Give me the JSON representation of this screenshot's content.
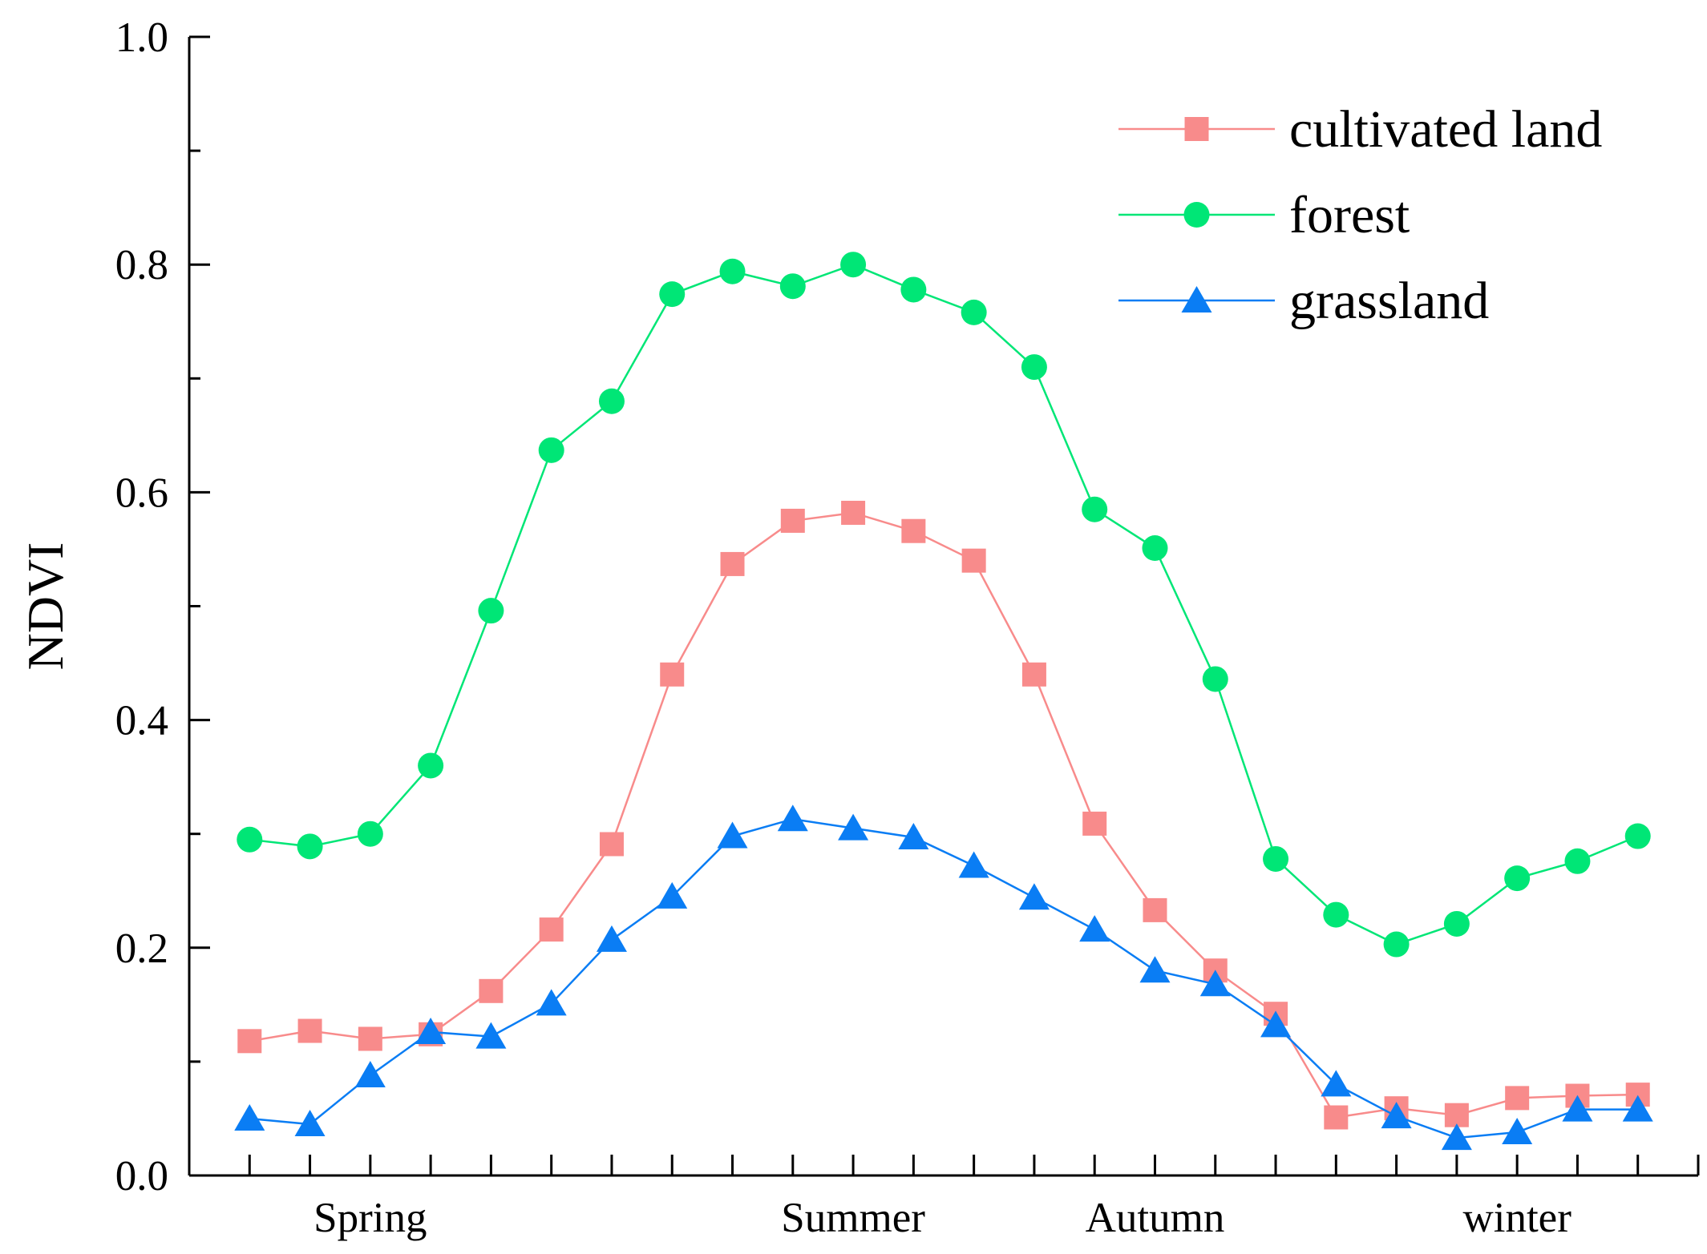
{
  "chart_data": {
    "type": "line",
    "title": "",
    "xlabel": "",
    "ylabel": "NDVI",
    "ylim": [
      0.0,
      1.0
    ],
    "yticks": [
      "0.0",
      "0.2",
      "0.4",
      "0.6",
      "0.8",
      "1.0"
    ],
    "x": [
      1,
      2,
      3,
      4,
      5,
      6,
      7,
      8,
      9,
      10,
      11,
      12,
      13,
      14,
      15,
      16,
      17,
      18,
      19,
      20,
      21,
      22,
      23,
      24
    ],
    "xlim": [
      -0.0,
      25.0
    ],
    "season_labels": [
      {
        "label": "Spring",
        "x": 3
      },
      {
        "label": "Summer",
        "x": 11
      },
      {
        "label": "Autumn",
        "x": 16
      },
      {
        "label": "winter",
        "x": 22
      }
    ],
    "legend_position": "top-right",
    "series": [
      {
        "name": "cultivated land",
        "color": "#f88b8b",
        "marker": "square",
        "values": [
          0.118,
          0.127,
          0.12,
          0.124,
          0.162,
          0.216,
          0.291,
          0.44,
          0.537,
          0.575,
          0.582,
          0.566,
          0.54,
          0.44,
          0.309,
          0.233,
          0.18,
          0.142,
          0.051,
          0.059,
          0.053,
          0.068,
          0.07,
          0.071
        ]
      },
      {
        "name": "forest",
        "color": "#00e676",
        "marker": "circle",
        "values": [
          0.295,
          0.289,
          0.3,
          0.36,
          0.496,
          0.637,
          0.68,
          0.774,
          0.794,
          0.781,
          0.8,
          0.778,
          0.758,
          0.71,
          0.585,
          0.551,
          0.436,
          0.278,
          0.229,
          0.203,
          0.221,
          0.261,
          0.276,
          0.298
        ]
      },
      {
        "name": "grassland",
        "color": "#0a7df4",
        "marker": "triangle",
        "values": [
          0.05,
          0.045,
          0.088,
          0.126,
          0.122,
          0.151,
          0.207,
          0.245,
          0.298,
          0.313,
          0.305,
          0.297,
          0.272,
          0.244,
          0.216,
          0.18,
          0.168,
          0.132,
          0.08,
          0.052,
          0.033,
          0.038,
          0.058,
          0.058
        ]
      }
    ]
  }
}
